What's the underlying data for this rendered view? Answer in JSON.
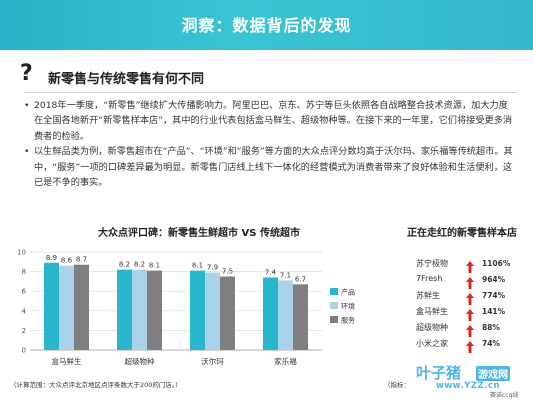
{
  "header": {
    "title": "洞察：数据背后的发现"
  },
  "section": {
    "question_mark": "?",
    "title": "新零售与传统零售有何不同"
  },
  "bullets": [
    "2018年一季度，“新零售”继续扩大传播影响力。阿里巴巴、京东、苏宁等巨头依照各自战略整合技术资源，加大力度在全国各地新开“新零售样本店”，其中的行业代表包括盒马鲜生、超级物种等。在接下来的一年里，它们将接受更多消费者的检验。",
    "以生鲜品类为例，新零售超市在“产品”、“环境”和“服务”等方面的大众点评分数均高于沃尔玛、家乐福等传统超市。其中，“服务”一项的口碑差异最为明显。新零售门店线上线下一体化的经营模式为消费者带来了良好体验和生活便利，这已是不争的事实。"
  ],
  "chart_data": [
    {
      "type": "bar",
      "title": "大众点评口碑：新零售生鲜超市 VS 传统超市",
      "categories": [
        "盒马鲜生",
        "超级物种",
        "沃尔玛",
        "家乐福"
      ],
      "series": [
        {
          "name": "产品",
          "values": [
            8.9,
            8.2,
            8.1,
            7.4
          ]
        },
        {
          "name": "环境",
          "values": [
            8.6,
            8.2,
            7.9,
            7.1
          ]
        },
        {
          "name": "服务",
          "values": [
            8.7,
            8.1,
            7.5,
            6.7
          ]
        }
      ],
      "ylim": [
        0,
        10
      ],
      "yticks": [
        0,
        2,
        4,
        6,
        8,
        10
      ],
      "grid": true,
      "legend": "right",
      "colors": [
        "#27b6cb",
        "#a9d3ea",
        "#7f7f7f"
      ],
      "xlabel": "",
      "ylabel": ""
    },
    {
      "type": "table",
      "title": "正在走红的新零售样本店",
      "rows": [
        {
          "name": "苏宁极物",
          "value": "1106%"
        },
        {
          "name": "7Fresh",
          "value": "964%"
        },
        {
          "name": "苏鲜生",
          "value": "774%"
        },
        {
          "name": "盒马鲜生",
          "value": "141%"
        },
        {
          "name": "超级物种",
          "value": "88%"
        },
        {
          "name": "小米之家",
          "value": "74%"
        }
      ],
      "arrow_color": "#e0231f"
    }
  ],
  "footer": {
    "note": "（计算范围：大众点评北京地区点评条数大于200的门店。）",
    "index_label": "（指标：",
    "watermark": {
      "name": "叶子猪",
      "badge": "游戏网",
      "url": "www.YZZ.cn",
      "logo_text": "赛诺ccq线"
    }
  }
}
